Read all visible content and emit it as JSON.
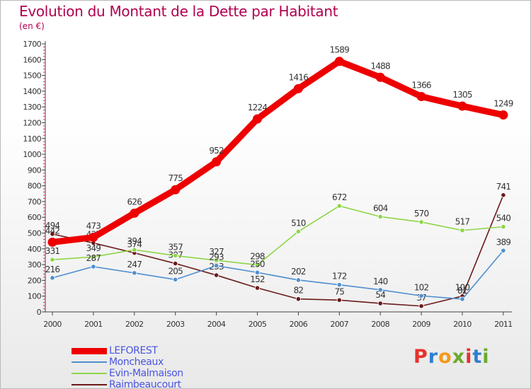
{
  "header": {
    "title": "Evolution du Montant de la Dette par Habitant",
    "subtitle": "(en €)"
  },
  "logo": {
    "text": "Proxiti",
    "letter_colors": [
      "#e8312c",
      "#2f7fd1",
      "#f29a1c",
      "#6aab2b",
      "#e8312c",
      "#2f7fd1",
      "#6aab2b"
    ]
  },
  "chart_data": {
    "type": "line",
    "x": [
      "2000",
      "2001",
      "2002",
      "2003",
      "2004",
      "2005",
      "2006",
      "2007",
      "2008",
      "2009",
      "2010",
      "2011"
    ],
    "ylim": [
      0,
      1700
    ],
    "yticks": [
      0,
      100,
      200,
      300,
      400,
      500,
      600,
      700,
      800,
      900,
      1000,
      1100,
      1200,
      1300,
      1400,
      1500,
      1600,
      1700
    ],
    "grid": false,
    "legend_position": "bottom-left",
    "series": [
      {
        "name": "LEFOREST",
        "color": "#ee0000",
        "values": [
          442,
          473,
          626,
          775,
          952,
          1224,
          1416,
          1589,
          1488,
          1366,
          1305,
          1249
        ]
      },
      {
        "name": "Moncheaux",
        "color": "#4f8fd0",
        "values": [
          216,
          287,
          247,
          205,
          293,
          250,
          202,
          172,
          140,
          102,
          81,
          389
        ]
      },
      {
        "name": "Evin-Malmaison",
        "color": "#8dd648",
        "values": [
          331,
          349,
          394,
          357,
          327,
          298,
          510,
          672,
          604,
          570,
          517,
          540
        ]
      },
      {
        "name": "Raimbeaucourt",
        "color": "#6b1a1a",
        "values": [
          494,
          437,
          374,
          307,
          233,
          152,
          82,
          75,
          54,
          37,
          100,
          741
        ]
      }
    ]
  }
}
